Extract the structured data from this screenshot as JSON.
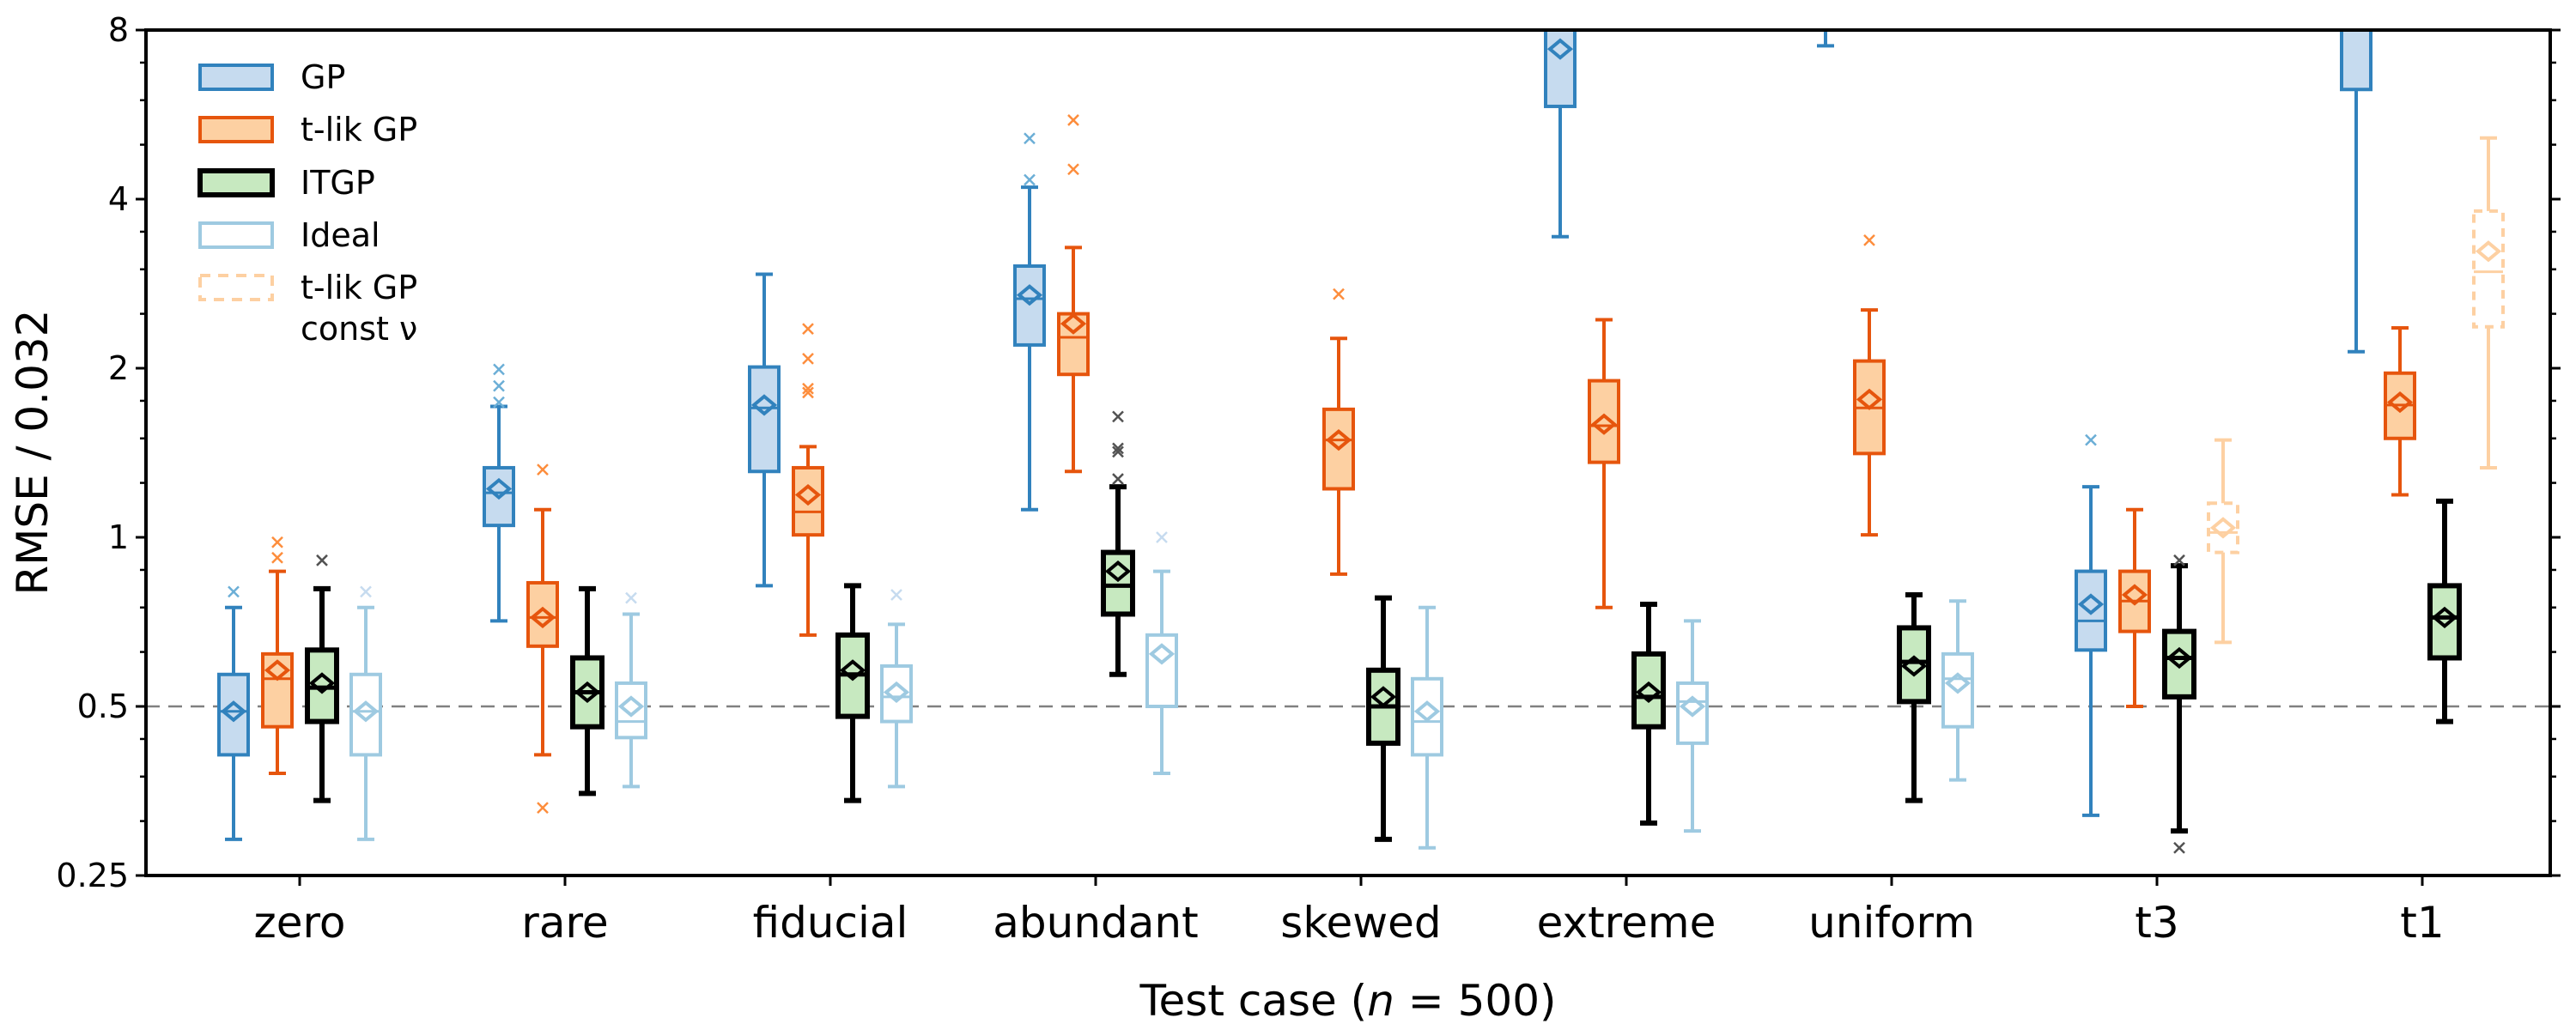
{
  "chart_data": {
    "type": "box",
    "title": "",
    "xlabel": "Test case (n = 500)",
    "xlabel_parts": {
      "prefix": "Test case (",
      "var": "n",
      "suffix": " = 500)"
    },
    "ylabel": "RMSE / 0.032",
    "yscale": "log2",
    "ylim": [
      0.25,
      8
    ],
    "yticks": [
      0.25,
      0.5,
      1,
      2,
      4,
      8
    ],
    "ytick_labels": [
      "0.25",
      "0.5",
      "1",
      "2",
      "4",
      "8"
    ],
    "reference_line": {
      "y": 0.5,
      "style": "dashed",
      "color": "#808080"
    },
    "legend_position": "top-left",
    "categories": [
      "zero",
      "rare",
      "fiducial",
      "abundant",
      "skewed",
      "extreme",
      "uniform",
      "t3",
      "t1"
    ],
    "series": [
      {
        "name": "GP",
        "edge": "#3182bd",
        "fill": "#c6dbef",
        "flier": "#6baed6",
        "dashed": false,
        "slot": 0,
        "boxes": [
          {
            "cat": "zero",
            "whislo": 0.29,
            "q1": 0.41,
            "med": 0.49,
            "mean": 0.49,
            "q3": 0.57,
            "whishi": 0.75,
            "fliers": [
              0.8
            ]
          },
          {
            "cat": "rare",
            "whislo": 0.71,
            "q1": 1.05,
            "med": 1.2,
            "mean": 1.22,
            "q3": 1.33,
            "whishi": 1.71,
            "fliers": [
              1.74,
              1.86,
              1.99
            ]
          },
          {
            "cat": "fiducial",
            "whislo": 0.82,
            "q1": 1.31,
            "med": 1.7,
            "mean": 1.72,
            "q3": 2.01,
            "whishi": 2.94,
            "fliers": []
          },
          {
            "cat": "abundant",
            "whislo": 1.12,
            "q1": 2.2,
            "med": 2.66,
            "mean": 2.7,
            "q3": 3.04,
            "whishi": 4.2,
            "fliers": [
              4.33,
              5.13
            ]
          },
          {
            "cat": "extreme",
            "whislo": 3.43,
            "q1": 5.85,
            "med": 8.6,
            "mean": 7.4,
            "q3": 10.5,
            "whishi": 15,
            "fliers": []
          },
          {
            "cat": "uniform",
            "whislo": 7.5,
            "q1": 9.5,
            "med": 11,
            "mean": 11.5,
            "q3": 13,
            "whishi": 18,
            "fliers": []
          },
          {
            "cat": "t3",
            "whislo": 0.32,
            "q1": 0.63,
            "med": 0.71,
            "mean": 0.76,
            "q3": 0.87,
            "whishi": 1.23,
            "fliers": [
              1.49
            ]
          },
          {
            "cat": "t1",
            "whislo": 2.14,
            "q1": 6.27,
            "med": 9.5,
            "mean": 10,
            "q3": 13,
            "whishi": 20,
            "fliers": []
          }
        ]
      },
      {
        "name": "t-lik GP",
        "edge": "#e6550d",
        "fill": "#fdd0a2",
        "flier": "#fd8d3c",
        "dashed": false,
        "slot": 1,
        "boxes": [
          {
            "cat": "zero",
            "whislo": 0.38,
            "q1": 0.46,
            "med": 0.56,
            "mean": 0.58,
            "q3": 0.62,
            "whishi": 0.87,
            "fliers": [
              0.92,
              0.98
            ]
          },
          {
            "cat": "rare",
            "whislo": 0.41,
            "q1": 0.64,
            "med": 0.72,
            "mean": 0.72,
            "q3": 0.83,
            "whishi": 1.12,
            "fliers": [
              0.33,
              1.32
            ]
          },
          {
            "cat": "fiducial",
            "whislo": 0.67,
            "q1": 1.01,
            "med": 1.11,
            "mean": 1.19,
            "q3": 1.33,
            "whishi": 1.45,
            "fliers": [
              1.81,
              1.84,
              2.08,
              2.35
            ]
          },
          {
            "cat": "abundant",
            "whislo": 1.31,
            "q1": 1.95,
            "med": 2.27,
            "mean": 2.4,
            "q3": 2.5,
            "whishi": 3.28,
            "fliers": [
              4.52,
              5.53
            ]
          },
          {
            "cat": "skewed",
            "whislo": 0.86,
            "q1": 1.22,
            "med": 1.49,
            "mean": 1.49,
            "q3": 1.69,
            "whishi": 2.26,
            "fliers": [
              2.71
            ]
          },
          {
            "cat": "extreme",
            "whislo": 0.75,
            "q1": 1.36,
            "med": 1.58,
            "mean": 1.59,
            "q3": 1.9,
            "whishi": 2.44,
            "fliers": []
          },
          {
            "cat": "uniform",
            "whislo": 1.01,
            "q1": 1.41,
            "med": 1.7,
            "mean": 1.76,
            "q3": 2.06,
            "whishi": 2.54,
            "fliers": [
              3.38
            ]
          },
          {
            "cat": "t3",
            "whislo": 0.5,
            "q1": 0.68,
            "med": 0.77,
            "mean": 0.79,
            "q3": 0.87,
            "whishi": 1.12,
            "fliers": []
          },
          {
            "cat": "t1",
            "whislo": 1.19,
            "q1": 1.5,
            "med": 1.72,
            "mean": 1.74,
            "q3": 1.96,
            "whishi": 2.36,
            "fliers": []
          }
        ]
      },
      {
        "name": "ITGP",
        "edge": "#000000",
        "fill": "#c7e9c0",
        "flier": "#525252",
        "dashed": false,
        "slot": 2,
        "boxes": [
          {
            "cat": "zero",
            "whislo": 0.34,
            "q1": 0.47,
            "med": 0.54,
            "mean": 0.55,
            "q3": 0.63,
            "whishi": 0.81,
            "fliers": [
              0.91
            ]
          },
          {
            "cat": "rare",
            "whislo": 0.35,
            "q1": 0.46,
            "med": 0.53,
            "mean": 0.53,
            "q3": 0.61,
            "whishi": 0.81,
            "fliers": []
          },
          {
            "cat": "fiducial",
            "whislo": 0.34,
            "q1": 0.48,
            "med": 0.57,
            "mean": 0.58,
            "q3": 0.67,
            "whishi": 0.82,
            "fliers": []
          },
          {
            "cat": "abundant",
            "whislo": 0.57,
            "q1": 0.73,
            "med": 0.82,
            "mean": 0.87,
            "q3": 0.94,
            "whishi": 1.23,
            "fliers": [
              1.27,
              1.42,
              1.44,
              1.64
            ]
          },
          {
            "cat": "skewed",
            "whislo": 0.29,
            "q1": 0.43,
            "med": 0.5,
            "mean": 0.52,
            "q3": 0.58,
            "whishi": 0.78,
            "fliers": []
          },
          {
            "cat": "extreme",
            "whislo": 0.31,
            "q1": 0.46,
            "med": 0.52,
            "mean": 0.53,
            "q3": 0.62,
            "whishi": 0.76,
            "fliers": []
          },
          {
            "cat": "uniform",
            "whislo": 0.34,
            "q1": 0.51,
            "med": 0.6,
            "mean": 0.59,
            "q3": 0.69,
            "whishi": 0.79,
            "fliers": []
          },
          {
            "cat": "t3",
            "whislo": 0.3,
            "q1": 0.52,
            "med": 0.61,
            "mean": 0.61,
            "q3": 0.68,
            "whishi": 0.89,
            "fliers": [
              0.28,
              0.91
            ]
          },
          {
            "cat": "t1",
            "whislo": 0.47,
            "q1": 0.61,
            "med": 0.72,
            "mean": 0.72,
            "q3": 0.82,
            "whishi": 1.16,
            "fliers": []
          }
        ]
      },
      {
        "name": "Ideal",
        "edge": "#9ecae1",
        "fill": "#ffffff",
        "flier": "#c6dbef",
        "dashed": false,
        "slot": 3,
        "boxes": [
          {
            "cat": "zero",
            "whislo": 0.29,
            "q1": 0.41,
            "med": 0.49,
            "mean": 0.49,
            "q3": 0.57,
            "whishi": 0.75,
            "fliers": [
              0.8
            ]
          },
          {
            "cat": "rare",
            "whislo": 0.36,
            "q1": 0.44,
            "med": 0.47,
            "mean": 0.5,
            "q3": 0.55,
            "whishi": 0.73,
            "fliers": [
              0.78
            ]
          },
          {
            "cat": "fiducial",
            "whislo": 0.36,
            "q1": 0.47,
            "med": 0.52,
            "mean": 0.53,
            "q3": 0.59,
            "whishi": 0.7,
            "fliers": [
              0.79
            ]
          },
          {
            "cat": "abundant",
            "whislo": 0.38,
            "q1": 0.5,
            "med": 0.5,
            "mean": 0.62,
            "q3": 0.67,
            "whishi": 0.87,
            "fliers": [
              1.0
            ]
          },
          {
            "cat": "skewed",
            "whislo": 0.28,
            "q1": 0.41,
            "med": 0.47,
            "mean": 0.49,
            "q3": 0.56,
            "whishi": 0.75,
            "fliers": []
          },
          {
            "cat": "extreme",
            "whislo": 0.3,
            "q1": 0.43,
            "med": 0.51,
            "mean": 0.5,
            "q3": 0.55,
            "whishi": 0.71,
            "fliers": []
          },
          {
            "cat": "uniform",
            "whislo": 0.37,
            "q1": 0.46,
            "med": 0.56,
            "mean": 0.55,
            "q3": 0.62,
            "whishi": 0.77,
            "fliers": []
          }
        ]
      },
      {
        "name": "t-lik GP const ν",
        "name_lines": [
          "t-lik GP",
          "const ν"
        ],
        "edge": "#fdd0a2",
        "fill": "none",
        "flier": "#fdd0a2",
        "dashed": true,
        "slot": 3,
        "boxes": [
          {
            "cat": "t3",
            "whislo": 0.65,
            "q1": 0.94,
            "med": 1.02,
            "mean": 1.04,
            "q3": 1.15,
            "whishi": 1.49,
            "fliers": []
          },
          {
            "cat": "t1",
            "whislo": 1.33,
            "q1": 2.37,
            "med": 2.97,
            "mean": 3.23,
            "q3": 3.81,
            "whishi": 5.14,
            "fliers": []
          }
        ]
      }
    ]
  }
}
